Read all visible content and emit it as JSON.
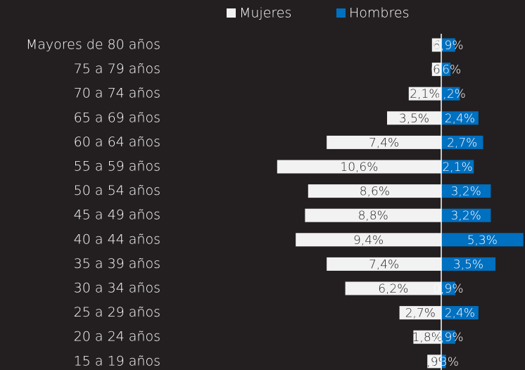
{
  "chart_data": {
    "type": "bar",
    "orientation": "horizontal",
    "layout": "diverging",
    "categories": [
      "Mayores de 80 años",
      "75 a 79 años",
      "70 a 74 años",
      "65 a 69 años",
      "60 a 64 años",
      "55 a 59 años",
      "50 a 54 años",
      "45 a 49 años",
      "40 a 44 años",
      "35 a 39 años",
      "30 a 34 años",
      "25 a 29 años",
      "20 a 24 años",
      "15 a 19 años"
    ],
    "series": [
      {
        "name": "Mujeres",
        "color": "#f2f2f2",
        "values": [
          0.6,
          0.6,
          2.1,
          3.5,
          7.4,
          10.6,
          8.6,
          8.8,
          9.4,
          7.4,
          6.2,
          2.7,
          1.8,
          0.9
        ],
        "value_labels": [
          "0,6%",
          "0,6%",
          "2,1%",
          "3,5%",
          "7,4%",
          "10,6%",
          "8,6%",
          "8,8%",
          "9,4%",
          "7,4%",
          "6,2%",
          "2,7%",
          "1,8%",
          "0,9%"
        ]
      },
      {
        "name": "Hombres",
        "color": "#0070c0",
        "values": [
          0.9,
          0.6,
          1.2,
          2.4,
          2.7,
          2.1,
          3.2,
          3.2,
          5.3,
          3.5,
          0.9,
          2.4,
          0.9,
          0.3
        ],
        "value_labels": [
          "0,9%",
          "0,6%",
          "1,2%",
          "2,4%",
          "2,7%",
          "2,1%",
          "3,2%",
          "3,2%",
          "5,3%",
          "3,5%",
          "0,9%",
          "2,4%",
          "0,9%",
          "0,3%"
        ]
      }
    ],
    "legend": "top"
  }
}
